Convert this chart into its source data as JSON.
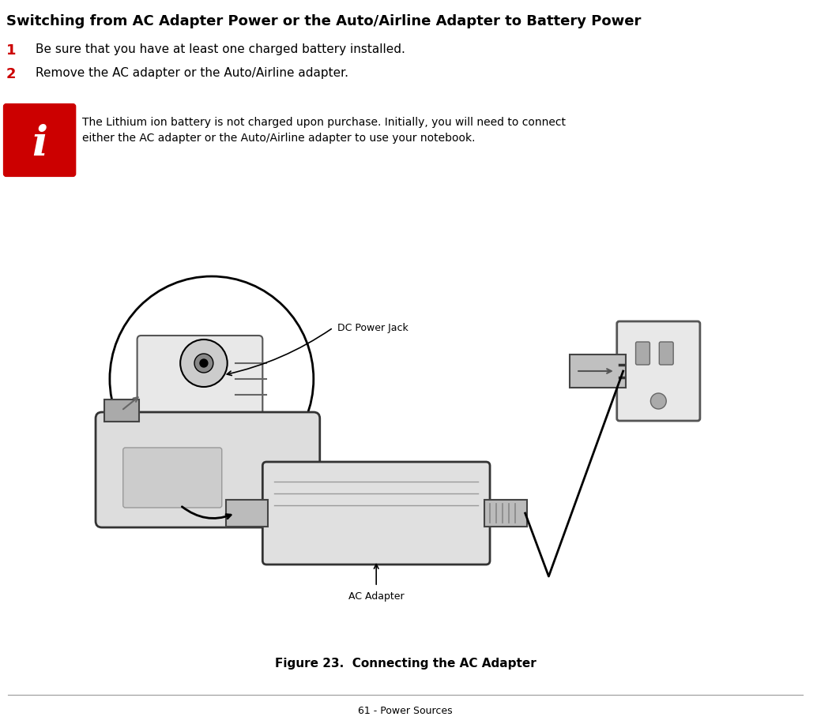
{
  "title": "Switching from AC Adapter Power or the Auto/Airline Adapter to Battery Power",
  "step1_number": "1",
  "step1_text": "Be sure that you have at least one charged battery installed.",
  "step2_number": "2",
  "step2_text": "Remove the AC adapter or the Auto/Airline adapter.",
  "info_line1": "The Lithium ion battery is not charged upon purchase. Initially, you will need to connect",
  "info_line2": "either the AC adapter or the Auto/Airline adapter to use your notebook.",
  "label_dc": "DC Power Jack",
  "label_ac": "AC Adapter",
  "figure_caption": "Figure 23.  Connecting the AC Adapter",
  "footer": "61 - Power Sources",
  "bg_color": "#ffffff",
  "text_color": "#000000",
  "red_color": "#cc0000",
  "info_box_border": "#cc0000",
  "info_box_bg": "#cc0000",
  "title_fontsize": 13,
  "step_num_fontsize": 13,
  "step_text_fontsize": 11,
  "info_fontsize": 10,
  "label_fontsize": 9,
  "caption_fontsize": 11,
  "footer_fontsize": 9
}
